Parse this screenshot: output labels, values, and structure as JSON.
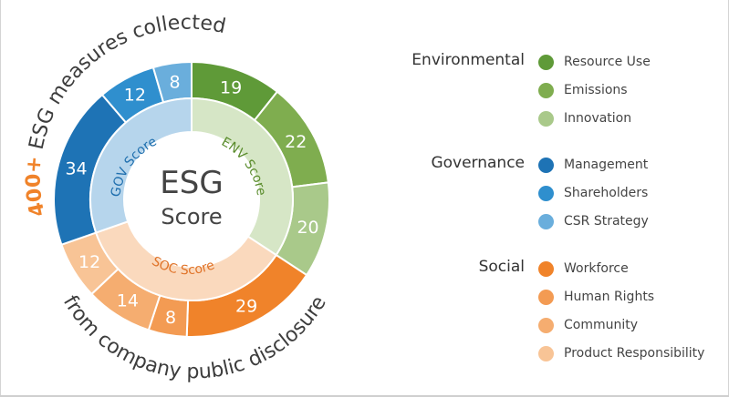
{
  "title": {
    "highlight": "400+",
    "top_text": " ESG measures collected",
    "bottom_text": "from company public disclosure"
  },
  "center": {
    "line1": "ESG",
    "line2": "Score"
  },
  "scores": {
    "env": "ENV Score",
    "soc": "SOC Score",
    "gov": "GOV Score"
  },
  "colors": {
    "highlight": "#f0832a",
    "title_text": "#3d3d3d",
    "env_score_text": "#5a8c2c",
    "soc_score_text": "#e0742a",
    "gov_score_text": "#1f6fae",
    "env_inner": "#d6e6c6",
    "soc_inner": "#fad9bd",
    "gov_inner": "#b6d5ec",
    "center": "#ffffff",
    "center_text": "#444444"
  },
  "chart_data": {
    "type": "pie",
    "segments": [
      {
        "category": "Environmental",
        "name": "Resource Use",
        "value": 19,
        "color": "#5f9a38"
      },
      {
        "category": "Environmental",
        "name": "Emissions",
        "value": 22,
        "color": "#7fad4f"
      },
      {
        "category": "Environmental",
        "name": "Innovation",
        "value": 20,
        "color": "#a9c98a"
      },
      {
        "category": "Social",
        "name": "Workforce",
        "value": 29,
        "color": "#f0832a"
      },
      {
        "category": "Social",
        "name": "Human Rights",
        "value": 8,
        "color": "#f39b53"
      },
      {
        "category": "Social",
        "name": "Community",
        "value": 14,
        "color": "#f5ad70"
      },
      {
        "category": "Social",
        "name": "Product Responsibility",
        "value": 12,
        "color": "#f8c496"
      },
      {
        "category": "Governance",
        "name": "Management",
        "value": 34,
        "color": "#1e73b5"
      },
      {
        "category": "Governance",
        "name": "Shareholders",
        "value": 12,
        "color": "#2f8fce"
      },
      {
        "category": "Governance",
        "name": "CSR Strategy",
        "value": 8,
        "color": "#6aaedc"
      }
    ]
  },
  "legend": {
    "groups": [
      {
        "label": "Environmental",
        "items": [
          {
            "label": "Resource Use",
            "color": "#5f9a38"
          },
          {
            "label": "Emissions",
            "color": "#7fad4f"
          },
          {
            "label": "Innovation",
            "color": "#a9c98a"
          }
        ]
      },
      {
        "label": "Governance",
        "items": [
          {
            "label": "Management",
            "color": "#1e73b5"
          },
          {
            "label": "Shareholders",
            "color": "#2f8fce"
          },
          {
            "label": "CSR Strategy",
            "color": "#6aaedc"
          }
        ]
      },
      {
        "label": "Social",
        "items": [
          {
            "label": "Workforce",
            "color": "#f0832a"
          },
          {
            "label": "Human Rights",
            "color": "#f39b53"
          },
          {
            "label": "Community",
            "color": "#f5ad70"
          },
          {
            "label": "Product Responsibility",
            "color": "#f8c496"
          }
        ]
      }
    ]
  }
}
